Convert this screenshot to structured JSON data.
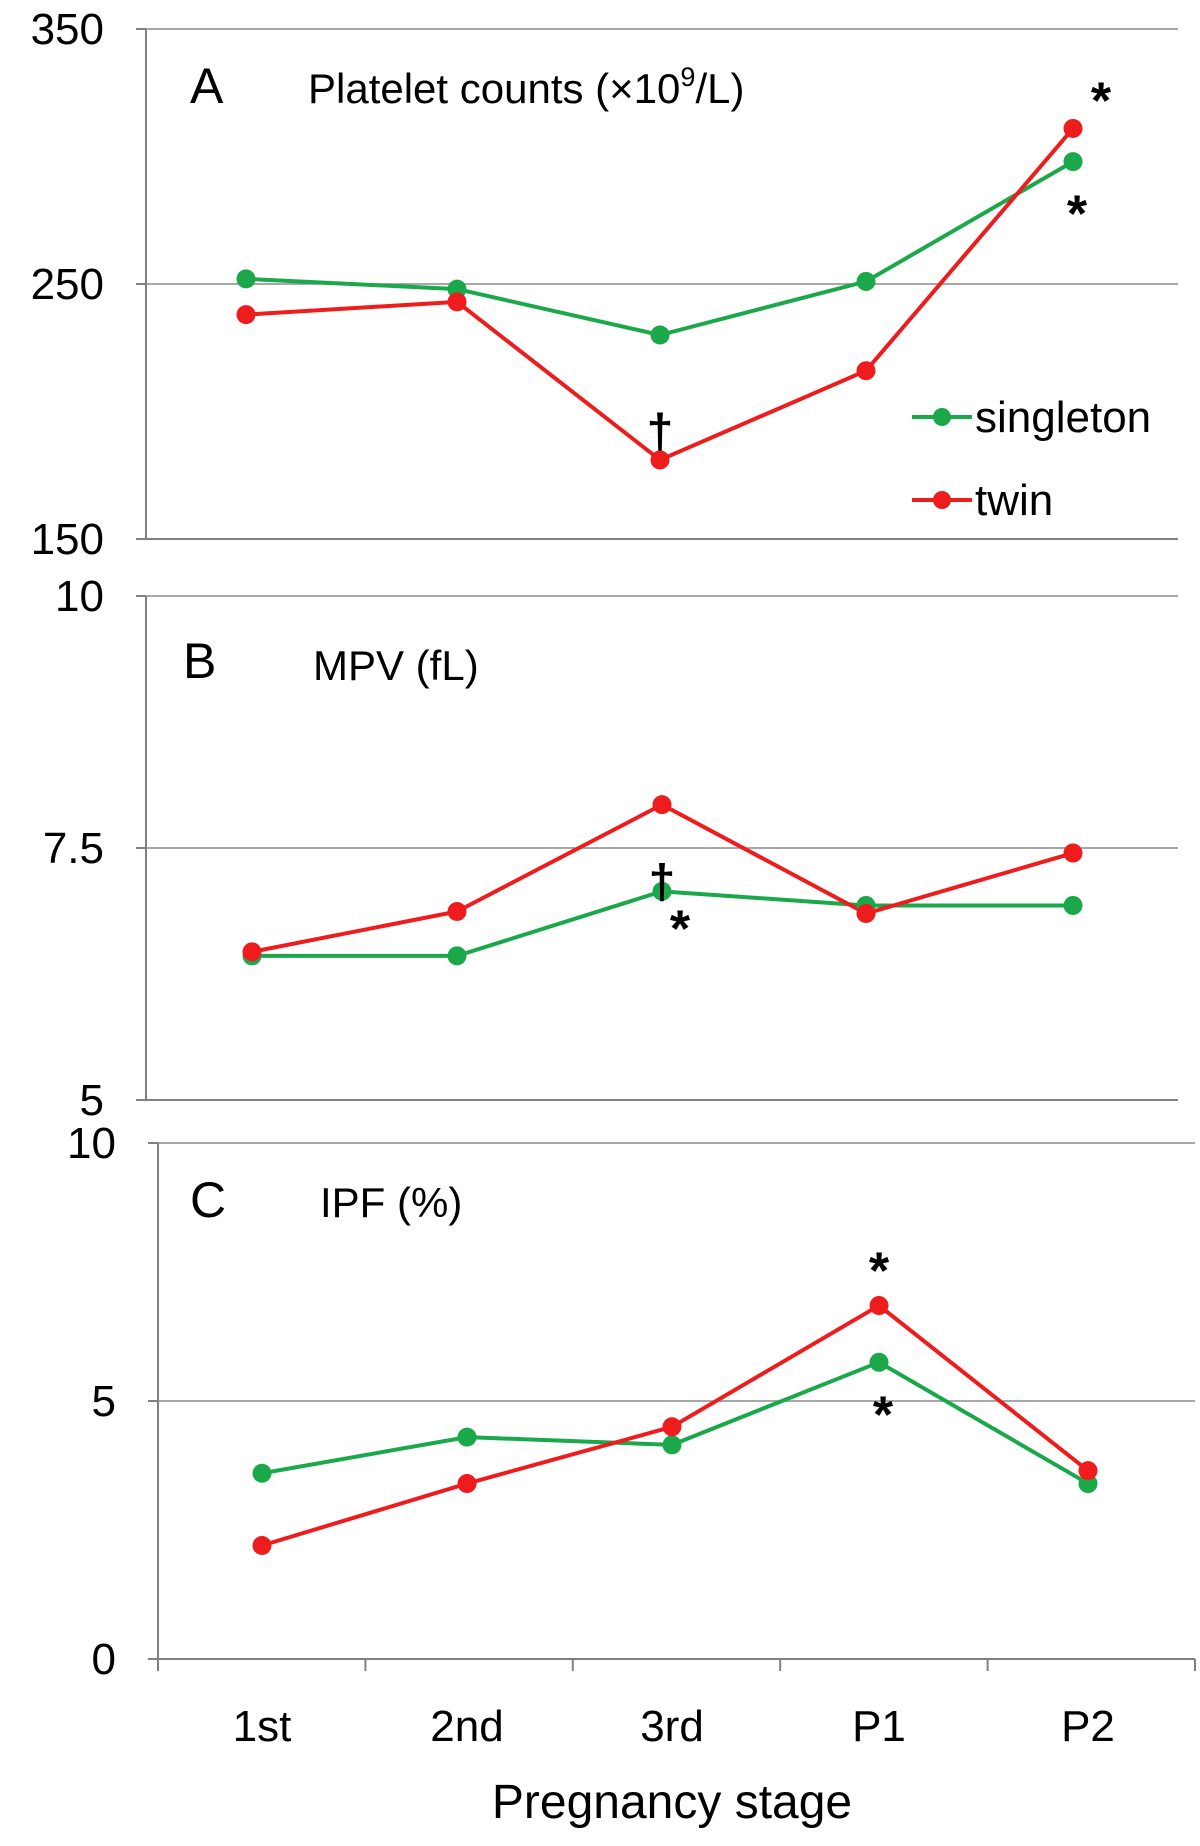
{
  "colors": {
    "singleton": "#1aa84a",
    "twin": "#ee1c1c",
    "dagger": "#000000"
  },
  "x_axis_title": "Pregnancy stage",
  "legend": [
    {
      "label": "singleton",
      "color": "#1aa84a"
    },
    {
      "label": "twin",
      "color": "#ee1c1c"
    }
  ],
  "chart_data": [
    {
      "type": "line",
      "panel_letter": "A",
      "title_text": "Platelet counts (×10",
      "title_sup": "9",
      "title_end": "/L)",
      "categories": [
        "1st",
        "2nd",
        "3rd",
        "P1",
        "P2"
      ],
      "ylim": [
        150,
        350
      ],
      "yticks": [
        "150",
        "250",
        "350"
      ],
      "grid": true,
      "series": [
        {
          "name": "singleton",
          "values": [
            252,
            248,
            230,
            251,
            298
          ]
        },
        {
          "name": "twin",
          "values": [
            238,
            243,
            181,
            216,
            311
          ]
        }
      ],
      "annotations": [
        {
          "text": "*",
          "category": "P2",
          "series": "twin",
          "color": "#ee1c1c"
        },
        {
          "text": "*",
          "category": "P2",
          "series": "singleton",
          "color": "#1aa84a"
        },
        {
          "text": "†",
          "category": "3rd",
          "color": "#000000"
        }
      ]
    },
    {
      "type": "line",
      "panel_letter": "B",
      "title_text": "MPV (fL)",
      "categories": [
        "1st",
        "2nd",
        "3rd",
        "P1",
        "P2"
      ],
      "ylim": [
        5,
        10
      ],
      "yticks": [
        "5",
        "7.5",
        "10"
      ],
      "grid": true,
      "series": [
        {
          "name": "singleton",
          "values": [
            6.43,
            6.43,
            7.07,
            6.93,
            6.93
          ]
        },
        {
          "name": "twin",
          "values": [
            6.47,
            6.87,
            7.93,
            6.85,
            7.45
          ]
        }
      ],
      "annotations": [
        {
          "text": "†",
          "category": "3rd",
          "color": "#000000"
        },
        {
          "text": "*",
          "category": "3rd",
          "series": "singleton",
          "color": "#1aa84a"
        }
      ]
    },
    {
      "type": "line",
      "panel_letter": "C",
      "title_text": "IPF (%)",
      "categories": [
        "1st",
        "2nd",
        "3rd",
        "P1",
        "P2"
      ],
      "ylim": [
        0,
        10
      ],
      "yticks": [
        "0",
        "5",
        "10"
      ],
      "grid": true,
      "series": [
        {
          "name": "singleton",
          "values": [
            3.6,
            4.3,
            4.15,
            5.75,
            3.4
          ]
        },
        {
          "name": "twin",
          "values": [
            2.2,
            3.4,
            4.5,
            6.85,
            3.65
          ]
        }
      ],
      "annotations": [
        {
          "text": "*",
          "category": "P1",
          "series": "twin",
          "color": "#ee1c1c"
        },
        {
          "text": "*",
          "category": "P1",
          "series": "singleton",
          "color": "#1aa84a"
        }
      ]
    }
  ]
}
